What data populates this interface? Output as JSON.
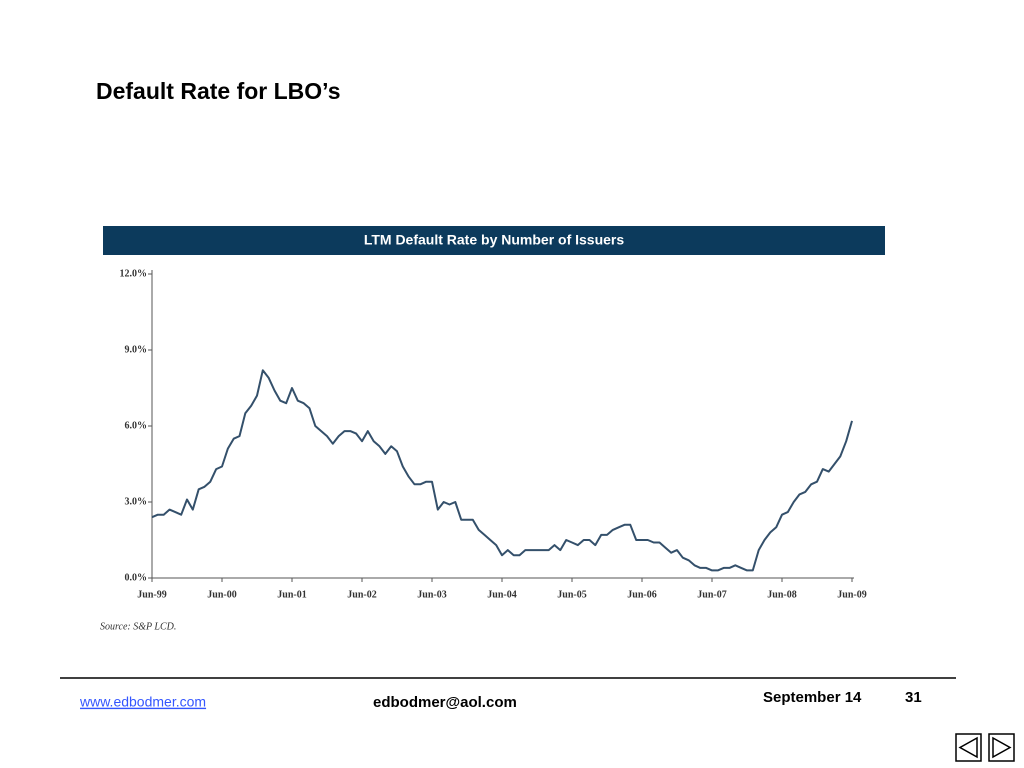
{
  "title": "Default Rate for LBO’s",
  "chart_data": {
    "type": "line",
    "title": "LTM Default Rate by Number of Issuers",
    "source": "Source: S&P LCD.",
    "color": "#34506b",
    "x": [
      "1999-06",
      "1999-07",
      "1999-08",
      "1999-09",
      "1999-10",
      "1999-11",
      "1999-12",
      "2000-01",
      "2000-02",
      "2000-03",
      "2000-04",
      "2000-05",
      "2000-06",
      "2000-07",
      "2000-08",
      "2000-09",
      "2000-10",
      "2000-11",
      "2000-12",
      "2001-01",
      "2001-02",
      "2001-03",
      "2001-04",
      "2001-05",
      "2001-06",
      "2001-07",
      "2001-08",
      "2001-09",
      "2001-10",
      "2001-11",
      "2001-12",
      "2002-01",
      "2002-02",
      "2002-03",
      "2002-04",
      "2002-05",
      "2002-06",
      "2002-07",
      "2002-08",
      "2002-09",
      "2002-10",
      "2002-11",
      "2002-12",
      "2003-01",
      "2003-02",
      "2003-03",
      "2003-04",
      "2003-05",
      "2003-06",
      "2003-07",
      "2003-08",
      "2003-09",
      "2003-10",
      "2003-11",
      "2003-12",
      "2004-01",
      "2004-02",
      "2004-03",
      "2004-04",
      "2004-05",
      "2004-06",
      "2004-07",
      "2004-08",
      "2004-09",
      "2004-10",
      "2004-11",
      "2004-12",
      "2005-01",
      "2005-02",
      "2005-03",
      "2005-04",
      "2005-05",
      "2005-06",
      "2005-07",
      "2005-08",
      "2005-09",
      "2005-10",
      "2005-11",
      "2005-12",
      "2006-01",
      "2006-02",
      "2006-03",
      "2006-04",
      "2006-05",
      "2006-06",
      "2006-07",
      "2006-08",
      "2006-09",
      "2006-10",
      "2006-11",
      "2006-12",
      "2007-01",
      "2007-02",
      "2007-03",
      "2007-04",
      "2007-05",
      "2007-06",
      "2007-07",
      "2007-08",
      "2007-09",
      "2007-10",
      "2007-11",
      "2007-12",
      "2008-01",
      "2008-02",
      "2008-03",
      "2008-04",
      "2008-05",
      "2008-06",
      "2008-07",
      "2008-08",
      "2008-09",
      "2008-10",
      "2008-11",
      "2008-12",
      "2009-01",
      "2009-02",
      "2009-03",
      "2009-04",
      "2009-05",
      "2009-06"
    ],
    "values": [
      2.4,
      2.5,
      2.5,
      2.7,
      2.6,
      2.5,
      3.1,
      2.7,
      3.5,
      3.6,
      3.8,
      4.3,
      4.4,
      5.1,
      5.5,
      5.6,
      6.5,
      6.8,
      7.2,
      8.2,
      7.9,
      7.4,
      7.0,
      6.9,
      7.5,
      7.0,
      6.9,
      6.7,
      6.0,
      5.8,
      5.6,
      5.3,
      5.6,
      5.8,
      5.8,
      5.7,
      5.4,
      5.8,
      5.4,
      5.2,
      4.9,
      5.2,
      5.0,
      4.4,
      4.0,
      3.7,
      3.7,
      3.8,
      3.8,
      2.7,
      3.0,
      2.9,
      3.0,
      2.3,
      2.3,
      2.3,
      1.9,
      1.7,
      1.5,
      1.3,
      0.9,
      1.1,
      0.9,
      0.9,
      1.1,
      1.1,
      1.1,
      1.1,
      1.1,
      1.3,
      1.1,
      1.5,
      1.4,
      1.3,
      1.5,
      1.5,
      1.3,
      1.7,
      1.7,
      1.9,
      2.0,
      2.1,
      2.1,
      1.5,
      1.5,
      1.5,
      1.4,
      1.4,
      1.2,
      1.0,
      1.1,
      0.8,
      0.7,
      0.5,
      0.4,
      0.4,
      0.3,
      0.3,
      0.4,
      0.4,
      0.5,
      0.4,
      0.3,
      0.3,
      1.1,
      1.5,
      1.8,
      2.0,
      2.5,
      2.6,
      3.0,
      3.3,
      3.4,
      3.7,
      3.8,
      4.3,
      4.2,
      4.5,
      4.8,
      5.4,
      6.2
    ],
    "xlim": [
      "1999-06",
      "2009-06"
    ],
    "xticks": [
      {
        "value": "1999-06",
        "label": "Jun-99"
      },
      {
        "value": "2000-06",
        "label": "Jun-00"
      },
      {
        "value": "2001-06",
        "label": "Jun-01"
      },
      {
        "value": "2002-06",
        "label": "Jun-02"
      },
      {
        "value": "2003-06",
        "label": "Jun-03"
      },
      {
        "value": "2004-06",
        "label": "Jun-04"
      },
      {
        "value": "2005-06",
        "label": "Jun-05"
      },
      {
        "value": "2006-06",
        "label": "Jun-06"
      },
      {
        "value": "2007-06",
        "label": "Jun-07"
      },
      {
        "value": "2008-06",
        "label": "Jun-08"
      },
      {
        "value": "2009-06",
        "label": "Jun-09"
      }
    ],
    "ylim": [
      0,
      12
    ],
    "yticks": [
      {
        "value": 0,
        "label": "0.0%"
      },
      {
        "value": 3,
        "label": "3.0%"
      },
      {
        "value": 6,
        "label": "6.0%"
      },
      {
        "value": 9,
        "label": "9.0%"
      },
      {
        "value": 12,
        "label": "12.0%"
      }
    ]
  },
  "footer": {
    "website": "www.edbodmer.com",
    "email": "edbodmer@aol.com",
    "date": "September 14",
    "page": "31"
  }
}
